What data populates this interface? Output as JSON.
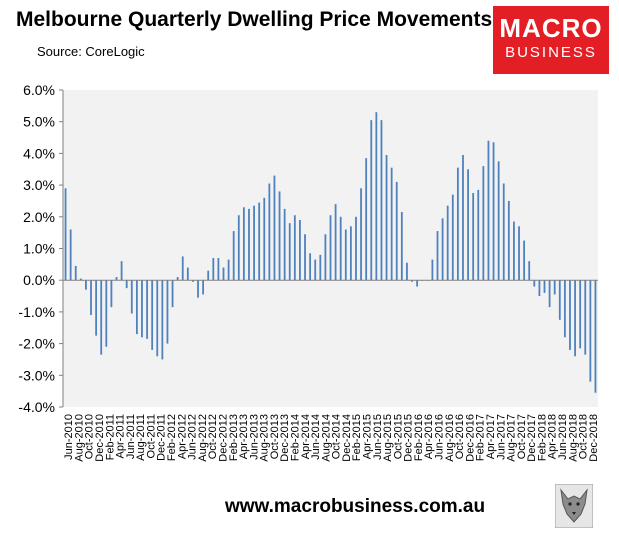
{
  "header": {
    "title": "Melbourne Quarterly Dwelling Price Movements",
    "source": "Source: CoreLogic"
  },
  "logo": {
    "line1": "MACRO",
    "line2": "BUSINESS",
    "color": "#e31e24"
  },
  "footer": {
    "url": "www.macrobusiness.com.au"
  },
  "chart_data": {
    "type": "bar",
    "title": "Melbourne Quarterly Dwelling Price Movements",
    "xlabel": "",
    "ylabel": "",
    "ylim": [
      -4.0,
      6.0
    ],
    "yticks": [
      6.0,
      5.0,
      4.0,
      3.0,
      2.0,
      1.0,
      0.0,
      -1.0,
      -2.0,
      -3.0,
      -4.0
    ],
    "ytick_labels": [
      "6.0%",
      "5.0%",
      "4.0%",
      "3.0%",
      "2.0%",
      "1.0%",
      "0.0%",
      "-1.0%",
      "-2.0%",
      "-3.0%",
      "-4.0%"
    ],
    "xtick_labels": [
      "Jun-2010",
      "Aug-2010",
      "Oct-2010",
      "Dec-2010",
      "Feb-2011",
      "Apr-2011",
      "Jun-2011",
      "Aug-2011",
      "Oct-2011",
      "Dec-2011",
      "Feb-2012",
      "Apr-2012",
      "Jun-2012",
      "Aug-2012",
      "Oct-2012",
      "Dec-2012",
      "Feb-2013",
      "Apr-2013",
      "Jun-2013",
      "Aug-2013",
      "Oct-2013",
      "Dec-2013",
      "Feb-2014",
      "Apr-2014",
      "Jun-2014",
      "Aug-2014",
      "Oct-2014",
      "Dec-2014",
      "Feb-2015",
      "Apr-2015",
      "Jun-2015",
      "Aug-2015",
      "Oct-2015",
      "Dec-2015",
      "Feb-2016",
      "Apr-2016",
      "Jun-2016",
      "Aug-2016",
      "Oct-2016",
      "Dec-2016",
      "Feb-2017",
      "Apr-2017",
      "Jun-2017",
      "Aug-2017",
      "Oct-2017",
      "Dec-2017",
      "Feb-2018",
      "Apr-2018",
      "Jun-2018",
      "Aug-2018",
      "Oct-2018",
      "Dec-2018"
    ],
    "bar_color": "#4f81bd",
    "plot_background": "#f2f2f2",
    "grid": false,
    "legend": "none",
    "series": [
      {
        "values": [
          2.9,
          1.6,
          0.45,
          0.05,
          -0.3,
          -1.1,
          -1.75,
          -2.35,
          -2.1,
          -0.85,
          0.1,
          0.6,
          -0.25,
          -1.05,
          -1.7,
          -1.8,
          -1.85,
          -2.2,
          -2.4,
          -2.5,
          -2.0,
          -0.85,
          0.1,
          0.75,
          0.4,
          -0.05,
          -0.55,
          -0.45,
          0.3,
          0.7,
          0.7,
          0.4,
          0.65,
          1.55,
          2.05,
          2.3,
          2.25,
          2.35,
          2.45,
          2.6,
          3.05,
          3.3,
          2.8,
          2.25,
          1.8,
          2.05,
          1.9,
          1.45,
          0.85,
          0.65,
          0.8,
          1.45,
          2.05,
          2.4,
          2.0,
          1.6,
          1.7,
          2.0,
          2.9,
          3.85,
          5.05,
          5.3,
          5.05,
          3.95,
          3.55,
          3.1,
          2.15,
          0.55,
          -0.05,
          -0.2,
          0.0,
          0.0,
          0.65,
          1.55,
          1.95,
          2.35,
          2.7,
          3.55,
          3.95,
          3.5,
          2.75,
          2.85,
          3.6,
          4.4,
          4.35,
          3.75,
          3.05,
          2.5,
          1.85,
          1.7,
          1.25,
          0.6,
          -0.2,
          -0.5,
          -0.4,
          -0.85,
          -0.45,
          -1.25,
          -1.8,
          -2.2,
          -2.4,
          -2.15,
          -2.35,
          -3.2,
          -3.55
        ]
      }
    ]
  }
}
